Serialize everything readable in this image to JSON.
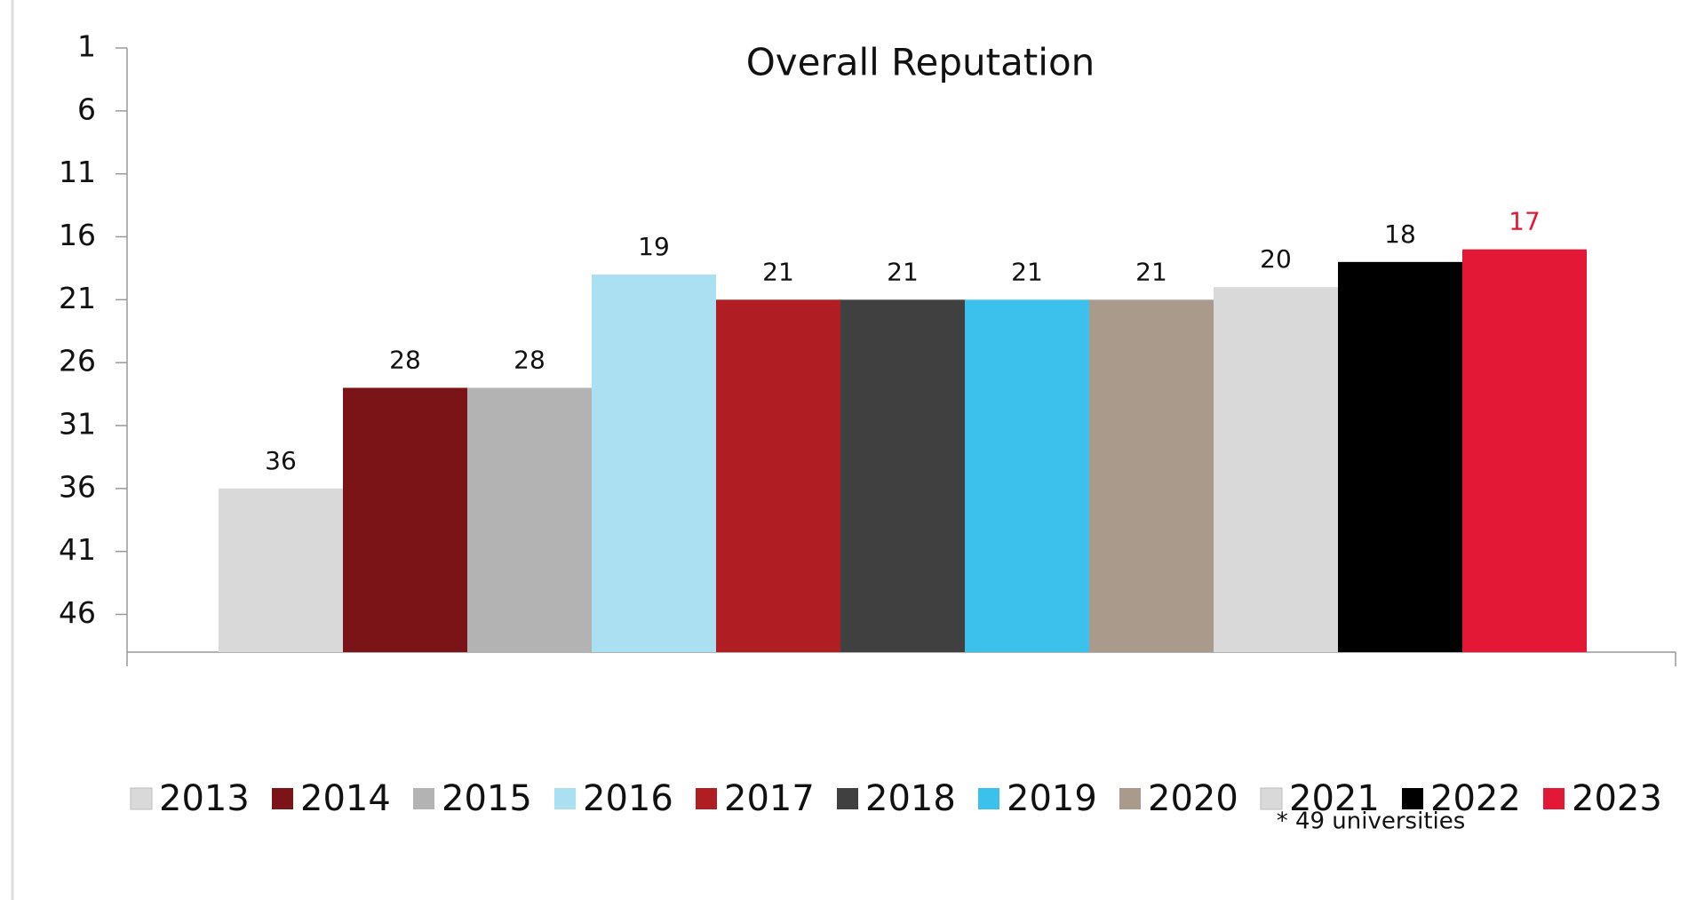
{
  "chart_data": {
    "type": "bar",
    "title": "Overall Reputation",
    "annotation": "* 49 universities",
    "categories": [
      null
    ],
    "series": [
      {
        "name": "2013",
        "color": "#d9d9d9",
        "values": [
          36
        ]
      },
      {
        "name": "2014",
        "color": "#7b1416",
        "values": [
          28
        ]
      },
      {
        "name": "2015",
        "color": "#b3b3b3",
        "values": [
          28
        ]
      },
      {
        "name": "2016",
        "color": "#abdff2",
        "values": [
          19
        ]
      },
      {
        "name": "2017",
        "color": "#b01d23",
        "values": [
          21
        ]
      },
      {
        "name": "2018",
        "color": "#404040",
        "values": [
          21
        ]
      },
      {
        "name": "2019",
        "color": "#3cc1ed",
        "values": [
          21
        ]
      },
      {
        "name": "2020",
        "color": "#a99a8c",
        "values": [
          21
        ]
      },
      {
        "name": "2021",
        "color": "#d9d9d9",
        "values": [
          20
        ]
      },
      {
        "name": "2022",
        "color": "#000000",
        "values": [
          18
        ]
      },
      {
        "name": "2023",
        "color": "#e31837",
        "values": [
          17
        ],
        "label_color": "#e31837"
      }
    ],
    "ylim": [
      1,
      49
    ],
    "y_inverted": true,
    "yticks": [
      1,
      6,
      11,
      16,
      21,
      26,
      31,
      36,
      41,
      46
    ],
    "grid": false,
    "legend": "bottom"
  }
}
